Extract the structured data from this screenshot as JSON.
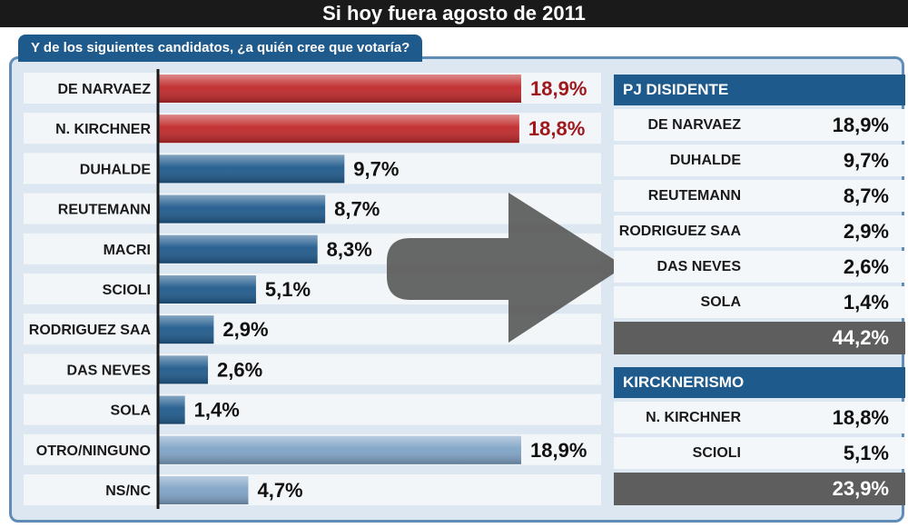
{
  "chart_data": {
    "type": "bar",
    "orientation": "horizontal",
    "title": "Si hoy fuera agosto de 2011",
    "subtitle": "Y de los siguientes candidatos, ¿a quién cree que votaría?",
    "categories": [
      "DE NARVAEZ",
      "N. KIRCHNER",
      "DUHALDE",
      "REUTEMANN",
      "MACRI",
      "SCIOLI",
      "RODRIGUEZ SAA",
      "DAS NEVES",
      "SOLA",
      "OTRO/NINGUNO",
      "NS/NC"
    ],
    "values": [
      18.9,
      18.8,
      9.7,
      8.7,
      8.3,
      5.1,
      2.9,
      2.6,
      1.4,
      18.9,
      4.7
    ],
    "value_labels": [
      "18,9%",
      "18,8%",
      "9,7%",
      "8,7%",
      "8,3%",
      "5,1%",
      "2,9%",
      "2,6%",
      "1,4%",
      "18,9%",
      "4,7%"
    ],
    "bar_colors": [
      "#c0282a",
      "#c0282a",
      "#1f5a8c",
      "#1f5a8c",
      "#1f5a8c",
      "#1f5a8c",
      "#1f5a8c",
      "#1f5a8c",
      "#1f5a8c",
      "#7fa3c6",
      "#7fa3c6"
    ],
    "label_colors": [
      "#a0181c",
      "#a0181c",
      "#111111",
      "#111111",
      "#111111",
      "#111111",
      "#111111",
      "#111111",
      "#111111",
      "#111111",
      "#111111"
    ],
    "xlim": [
      0,
      18.9
    ],
    "grid": false,
    "legend": "none",
    "groups": [
      {
        "name": "PJ DISIDENTE",
        "rows": [
          {
            "name": "DE NARVAEZ",
            "value": "18,9%"
          },
          {
            "name": "DUHALDE",
            "value": "9,7%"
          },
          {
            "name": "REUTEMANN",
            "value": "8,7%"
          },
          {
            "name": "RODRIGUEZ SAA",
            "value": "2,9%"
          },
          {
            "name": "DAS NEVES",
            "value": "2,6%"
          },
          {
            "name": "SOLA",
            "value": "1,4%"
          }
        ],
        "total": "44,2%"
      },
      {
        "name": "KIRCKNERISMO",
        "rows": [
          {
            "name": "N. KIRCHNER",
            "value": "18,8%"
          },
          {
            "name": "SCIOLI",
            "value": "5,1%"
          }
        ],
        "total": "23,9%"
      }
    ]
  },
  "colors": {
    "accent_blue": "#1f5a8c",
    "accent_red": "#c0282a",
    "light_blue": "#7fa3c6",
    "panel_bg": "#dce7f1",
    "total_bg": "#5e5e5e",
    "arrow": "#5a5a5a"
  },
  "icons": {
    "arrow": "right-arrow-icon"
  }
}
